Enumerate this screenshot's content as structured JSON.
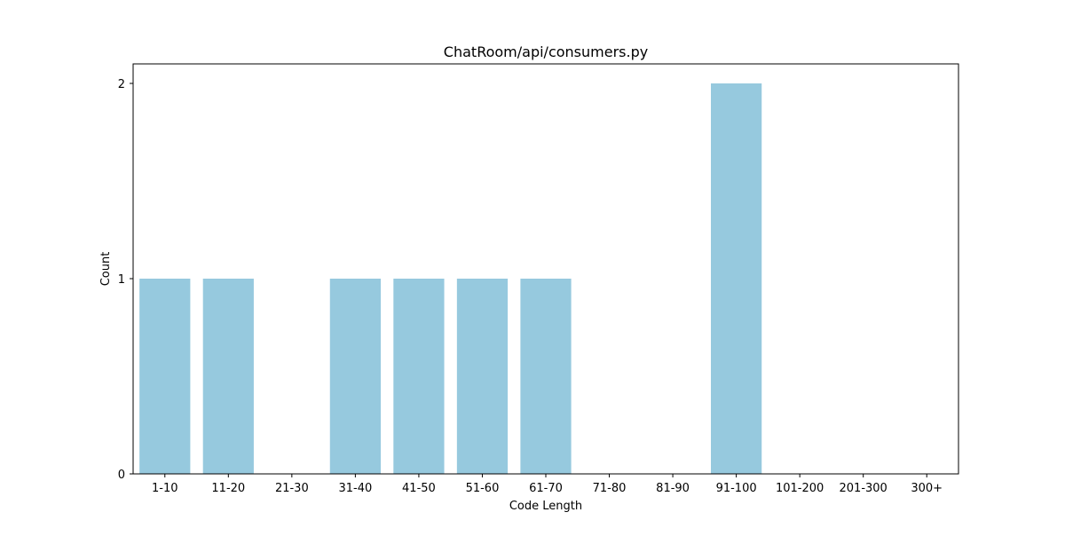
{
  "chart_data": {
    "type": "bar",
    "title": "ChatRoom/api/consumers.py",
    "xlabel": "Code Length",
    "ylabel": "Count",
    "categories": [
      "1-10",
      "11-20",
      "21-30",
      "31-40",
      "41-50",
      "51-60",
      "61-70",
      "71-80",
      "81-90",
      "91-100",
      "101-200",
      "201-300",
      "300+"
    ],
    "values": [
      1,
      1,
      0,
      1,
      1,
      1,
      1,
      0,
      0,
      2,
      0,
      0,
      0
    ],
    "ylim": [
      0,
      2.1
    ],
    "yticks": [
      0,
      1,
      2
    ],
    "grid": false,
    "bar_color": "#96c9de"
  }
}
